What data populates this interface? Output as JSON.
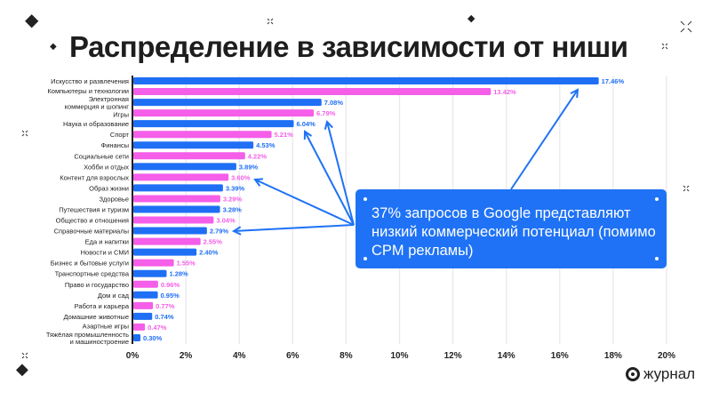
{
  "title": "Распределение в зависимости от ниши",
  "callout": {
    "text": "37% запросов в Google представляют низкий коммерческий потенциал (помимо CPM рекламы)"
  },
  "logo": {
    "text": "журнал"
  },
  "colors": {
    "blue": "#1f6ff5",
    "pink": "#f55ee8",
    "callout": "#1f72f5"
  },
  "chart_data": {
    "type": "bar",
    "orientation": "horizontal",
    "categories": [
      "Искусство и развлечения",
      "Компьютеры и технологии",
      "Электронная коммерция и шопинг",
      "Игры",
      "Наука и образование",
      "Спорт",
      "Финансы",
      "Социальные сети",
      "Хобби и отдых",
      "Контент для взрослых",
      "Образ жизни",
      "Здоровье",
      "Путешествия и туризм",
      "Общество и отношения",
      "Справочные материалы",
      "Еда и напитки",
      "Новости и СМИ",
      "Бизнес и бытовые услуги",
      "Транспортные средства",
      "Право и государство",
      "Дом и сад",
      "Работа и карьера",
      "Домашние животные",
      "Азартные игры",
      "Тяжёлая промышленность и машиностроение"
    ],
    "category_lines": [
      [
        "Искусство и развлечения"
      ],
      [
        "Компьютеры и технологии"
      ],
      [
        "Электронная",
        "коммерция и шопинг"
      ],
      [
        "Игры"
      ],
      [
        "Наука и образование"
      ],
      [
        "Спорт"
      ],
      [
        "Финансы"
      ],
      [
        "Социальные сети"
      ],
      [
        "Хобби и отдых"
      ],
      [
        "Контент для взрослых"
      ],
      [
        "Образ жизни"
      ],
      [
        "Здоровье"
      ],
      [
        "Путешествия и туризм"
      ],
      [
        "Общество и отношения"
      ],
      [
        "Справочные материалы"
      ],
      [
        "Еда и напитки"
      ],
      [
        "Новости и СМИ"
      ],
      [
        "Бизнес и бытовые услуги"
      ],
      [
        "Транспортные средства"
      ],
      [
        "Право и государство"
      ],
      [
        "Дом и сад"
      ],
      [
        "Работа и карьера"
      ],
      [
        "Домашние животные"
      ],
      [
        "Азартные игры"
      ],
      [
        "Тяжёлая промышленность",
        "и машиностроение"
      ]
    ],
    "values": [
      17.46,
      13.42,
      7.08,
      6.79,
      6.04,
      5.21,
      4.53,
      4.22,
      3.89,
      3.6,
      3.39,
      3.29,
      3.28,
      3.04,
      2.79,
      2.55,
      2.4,
      1.55,
      1.28,
      0.96,
      0.95,
      0.77,
      0.74,
      0.47,
      0.3
    ],
    "value_labels": [
      "17.46%",
      "13.42%",
      "7.08%",
      "6.79%",
      "6.04%",
      "5.21%",
      "4.53%",
      "4.22%",
      "3.89%",
      "3.60%",
      "3.39%",
      "3.29%",
      "3.28%",
      "3.04%",
      "2.79%",
      "2.55%",
      "2.40%",
      "1.55%",
      "1.28%",
      "0.96%",
      "0.95%",
      "0.77%",
      "0.74%",
      "0.47%",
      "0.30%"
    ],
    "xlim": [
      0,
      20
    ],
    "xticks": [
      "0%",
      "2%",
      "4%",
      "6%",
      "8%",
      "10%",
      "12%",
      "14%",
      "16%",
      "18%",
      "20%"
    ],
    "grid": true,
    "bar_colors": "alternating blue/pink",
    "highlighted": [
      "Искусство и развлечения",
      "Игры",
      "Наука и образование",
      "Контент для взрослых",
      "Справочные материалы"
    ]
  }
}
